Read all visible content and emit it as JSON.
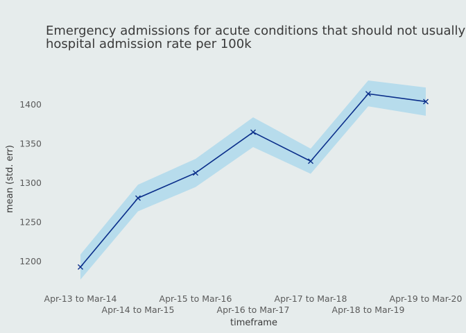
{
  "chart_data": {
    "type": "line",
    "title_lines": [
      "Emergency admissions for acute conditions that should not usually re",
      "hospital admission rate per 100k"
    ],
    "xlabel": "timeframe",
    "ylabel": "mean (std. err)",
    "categories": [
      "Apr-13 to Mar-14",
      "Apr-14 to Mar-15",
      "Apr-15 to Mar-16",
      "Apr-16 to Mar-17",
      "Apr-17 to Mar-18",
      "Apr-18 to Mar-19",
      "Apr-19 to Mar-20"
    ],
    "series": [
      {
        "values": [
          1193,
          1281,
          1313,
          1365,
          1328,
          1414,
          1404
        ],
        "lower": [
          1177,
          1264,
          1295,
          1346,
          1312,
          1398,
          1386
        ],
        "upper": [
          1209,
          1298,
          1331,
          1384,
          1344,
          1431,
          1422
        ]
      }
    ],
    "yticks": [
      1200,
      1250,
      1300,
      1350,
      1400
    ],
    "ylim": [
      1167,
      1445
    ],
    "grid": false,
    "colors": {
      "line": "#0a2e8a",
      "band": "#b7dcec",
      "background": "#e6ecec"
    }
  }
}
